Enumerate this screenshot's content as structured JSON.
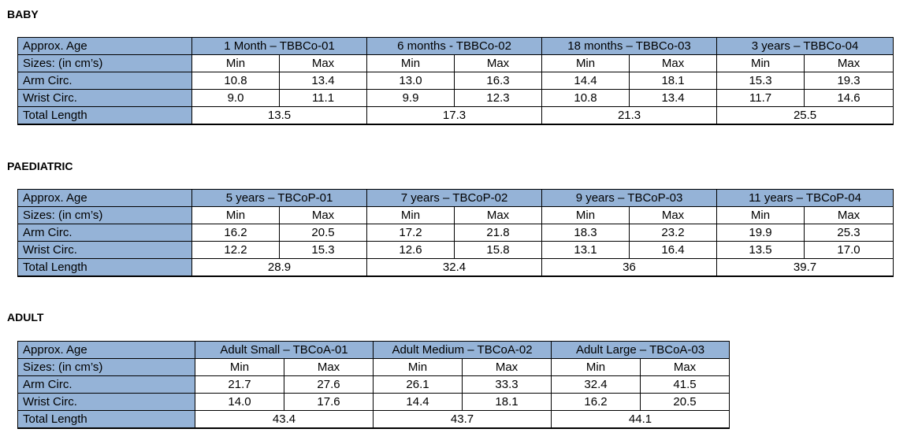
{
  "sections": [
    {
      "title": "BABY",
      "row_labels": [
        "Approx. Age",
        "Sizes: (in cm’s)",
        "Arm Circ.",
        "Wrist Circ.",
        "Total Length"
      ],
      "min_label": "Min",
      "max_label": "Max",
      "groups": [
        {
          "name": "1 Month – TBBCo-01",
          "arm": [
            "10.8",
            "13.4"
          ],
          "wrist": [
            "9.0",
            "11.1"
          ],
          "total": "13.5"
        },
        {
          "name": "6 months - TBBCo-02",
          "arm": [
            "13.0",
            "16.3"
          ],
          "wrist": [
            "9.9",
            "12.3"
          ],
          "total": "17.3"
        },
        {
          "name": "18 months – TBBCo-03",
          "arm": [
            "14.4",
            "18.1"
          ],
          "wrist": [
            "10.8",
            "13.4"
          ],
          "total": "21.3"
        },
        {
          "name": "3 years – TBBCo-04",
          "arm": [
            "15.3",
            "19.3"
          ],
          "wrist": [
            "11.7",
            "14.6"
          ],
          "total": "25.5"
        }
      ]
    },
    {
      "title": "PAEDIATRIC",
      "row_labels": [
        "Approx. Age",
        "Sizes: (in cm’s)",
        "Arm Circ.",
        "Wrist Circ.",
        "Total Length"
      ],
      "min_label": "Min",
      "max_label": "Max",
      "groups": [
        {
          "name": "5 years – TBCoP-01",
          "arm": [
            "16.2",
            "20.5"
          ],
          "wrist": [
            "12.2",
            "15.3"
          ],
          "total": "28.9"
        },
        {
          "name": "7 years – TBCoP-02",
          "arm": [
            "17.2",
            "21.8"
          ],
          "wrist": [
            "12.6",
            "15.8"
          ],
          "total": "32.4"
        },
        {
          "name": "9 years – TBCoP-03",
          "arm": [
            "18.3",
            "23.2"
          ],
          "wrist": [
            "13.1",
            "16.4"
          ],
          "total": "36"
        },
        {
          "name": "11 years – TBCoP-04",
          "arm": [
            "19.9",
            "25.3"
          ],
          "wrist": [
            "13.5",
            "17.0"
          ],
          "total": "39.7"
        }
      ]
    },
    {
      "title": "ADULT",
      "row_labels": [
        "Approx. Age",
        "Sizes: (in cm’s)",
        "Arm Circ.",
        "Wrist Circ.",
        "Total Length"
      ],
      "min_label": "Min",
      "max_label": "Max",
      "groups": [
        {
          "name": "Adult Small – TBCoA-01",
          "arm": [
            "21.7",
            "27.6"
          ],
          "wrist": [
            "14.0",
            "17.6"
          ],
          "total": "43.4"
        },
        {
          "name": "Adult Medium – TBCoA-02",
          "arm": [
            "26.1",
            "33.3"
          ],
          "wrist": [
            "14.4",
            "18.1"
          ],
          "total": "43.7"
        },
        {
          "name": "Adult Large – TBCoA-03",
          "arm": [
            "32.4",
            "41.5"
          ],
          "wrist": [
            "16.2",
            "20.5"
          ],
          "total": "44.1"
        }
      ]
    }
  ],
  "colors": {
    "header_fill": "#95b3d7"
  }
}
